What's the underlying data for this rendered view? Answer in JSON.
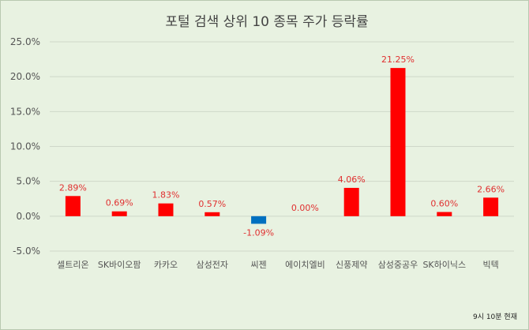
{
  "chart_data": {
    "type": "bar",
    "title": "포털 검색 상위 10 종목 주가 등락률",
    "categories": [
      "셀트리온",
      "SK바이오팜",
      "카카오",
      "삼성전자",
      "씨젠",
      "에이치엘비",
      "신풍제약",
      "삼성중공우",
      "SK하이닉스",
      "빅텍"
    ],
    "values": [
      2.89,
      0.69,
      1.83,
      0.57,
      -1.09,
      0.0,
      4.06,
      21.25,
      0.6,
      2.66
    ],
    "data_labels": [
      "2.89%",
      "0.69%",
      "1.83%",
      "0.57%",
      "-1.09%",
      "0.00%",
      "4.06%",
      "21.25%",
      "0.60%",
      "2.66%"
    ],
    "ylim": [
      -5,
      25
    ],
    "yticks": [
      -5,
      0,
      5,
      10,
      15,
      20,
      25
    ],
    "ytick_labels": [
      "-5.0%",
      "0.0%",
      "5.0%",
      "10.0%",
      "15.0%",
      "20.0%",
      "25.0%"
    ],
    "grid": true,
    "colors": {
      "positive": "#ff0000",
      "negative": "#0070c0",
      "label": "#e03030",
      "background": "#e8f2e1",
      "grid": "#cfd8c9"
    }
  },
  "footnote": "9시 10분 현재"
}
